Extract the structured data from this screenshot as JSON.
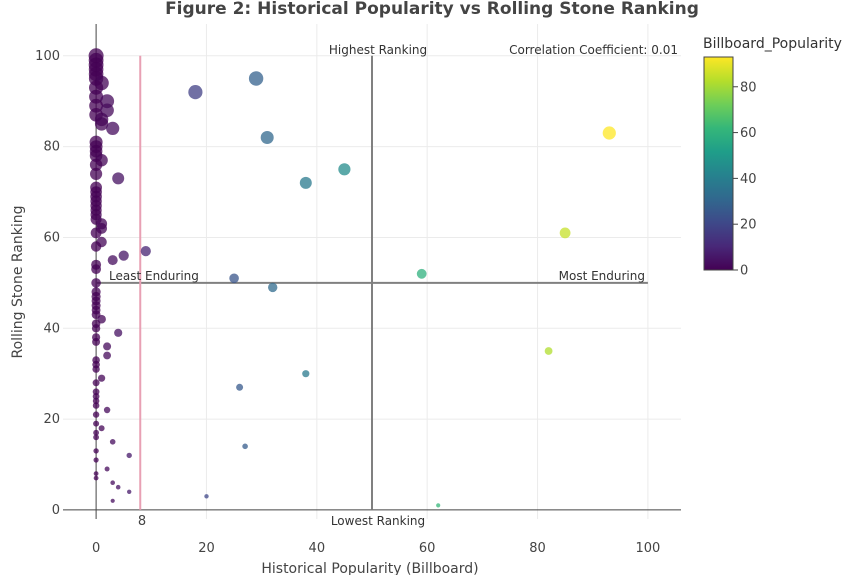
{
  "chart_data": {
    "type": "scatter",
    "title": "Figure 2: Historical Popularity vs Rolling Stone Ranking",
    "xlabel": "Historical Popularity (Billboard)",
    "ylabel": "Rolling Stone Ranking",
    "xlim": [
      -6,
      106
    ],
    "ylim": [
      -2,
      107
    ],
    "xticks": [
      0,
      20,
      40,
      60,
      80,
      100
    ],
    "yticks": [
      0,
      20,
      40,
      60,
      80,
      100
    ],
    "grid": true,
    "colorbar": {
      "title": "Billboard_Popularity",
      "range": [
        0,
        93
      ],
      "ticks": [
        0,
        20,
        40,
        60,
        80
      ],
      "colorscale": [
        "#440154",
        "#482878",
        "#3e4989",
        "#31688e",
        "#26828e",
        "#1f9e89",
        "#35b779",
        "#6ece58",
        "#b5de2b",
        "#fde725"
      ]
    },
    "reference_lines": {
      "vertical_mid": 50,
      "horizontal_mid": 50,
      "pink_threshold": 8,
      "pink_label": "8"
    },
    "annotations": {
      "top": "Highest Ranking",
      "bottom": "Lowest Ranking",
      "left": "Least Enduring",
      "right": "Most Enduring",
      "correlation": "Correlation Coefficient:  0.01"
    },
    "points": [
      {
        "x": 0,
        "y": 100
      },
      {
        "x": 0,
        "y": 99
      },
      {
        "x": 0,
        "y": 98
      },
      {
        "x": 0,
        "y": 97
      },
      {
        "x": 0,
        "y": 96
      },
      {
        "x": 0,
        "y": 95
      },
      {
        "x": 1,
        "y": 94
      },
      {
        "x": 0,
        "y": 93
      },
      {
        "x": 0,
        "y": 91
      },
      {
        "x": 2,
        "y": 90
      },
      {
        "x": 0,
        "y": 89
      },
      {
        "x": 2,
        "y": 88
      },
      {
        "x": 0,
        "y": 87
      },
      {
        "x": 1,
        "y": 86
      },
      {
        "x": 1,
        "y": 85
      },
      {
        "x": 3,
        "y": 84
      },
      {
        "x": 0,
        "y": 81
      },
      {
        "x": 0,
        "y": 80
      },
      {
        "x": 0,
        "y": 79
      },
      {
        "x": 0,
        "y": 78
      },
      {
        "x": 1,
        "y": 77
      },
      {
        "x": 0,
        "y": 76
      },
      {
        "x": 0,
        "y": 74
      },
      {
        "x": 4,
        "y": 73
      },
      {
        "x": 0,
        "y": 71
      },
      {
        "x": 0,
        "y": 70
      },
      {
        "x": 0,
        "y": 69
      },
      {
        "x": 0,
        "y": 68
      },
      {
        "x": 0,
        "y": 67
      },
      {
        "x": 0,
        "y": 66
      },
      {
        "x": 0,
        "y": 65
      },
      {
        "x": 0,
        "y": 64
      },
      {
        "x": 1,
        "y": 63
      },
      {
        "x": 1,
        "y": 62
      },
      {
        "x": 0,
        "y": 61
      },
      {
        "x": 1,
        "y": 59
      },
      {
        "x": 0,
        "y": 58
      },
      {
        "x": 9,
        "y": 57
      },
      {
        "x": 5,
        "y": 56
      },
      {
        "x": 3,
        "y": 55
      },
      {
        "x": 0,
        "y": 54
      },
      {
        "x": 0,
        "y": 53
      },
      {
        "x": 0,
        "y": 50
      },
      {
        "x": 0,
        "y": 48
      },
      {
        "x": 0,
        "y": 47
      },
      {
        "x": 0,
        "y": 46
      },
      {
        "x": 0,
        "y": 45
      },
      {
        "x": 0,
        "y": 44
      },
      {
        "x": 0,
        "y": 43
      },
      {
        "x": 1,
        "y": 42
      },
      {
        "x": 0,
        "y": 41
      },
      {
        "x": 0,
        "y": 40
      },
      {
        "x": 4,
        "y": 39
      },
      {
        "x": 0,
        "y": 38
      },
      {
        "x": 0,
        "y": 37
      },
      {
        "x": 2,
        "y": 36
      },
      {
        "x": 2,
        "y": 34
      },
      {
        "x": 0,
        "y": 33
      },
      {
        "x": 0,
        "y": 32
      },
      {
        "x": 0,
        "y": 31
      },
      {
        "x": 1,
        "y": 29
      },
      {
        "x": 0,
        "y": 28
      },
      {
        "x": 0,
        "y": 26
      },
      {
        "x": 0,
        "y": 25
      },
      {
        "x": 0,
        "y": 24
      },
      {
        "x": 0,
        "y": 23
      },
      {
        "x": 2,
        "y": 22
      },
      {
        "x": 0,
        "y": 21
      },
      {
        "x": 0,
        "y": 19
      },
      {
        "x": 1,
        "y": 18
      },
      {
        "x": 0,
        "y": 17
      },
      {
        "x": 0,
        "y": 16
      },
      {
        "x": 3,
        "y": 15
      },
      {
        "x": 0,
        "y": 13
      },
      {
        "x": 6,
        "y": 12
      },
      {
        "x": 0,
        "y": 11
      },
      {
        "x": 2,
        "y": 9
      },
      {
        "x": 0,
        "y": 8
      },
      {
        "x": 0,
        "y": 7
      },
      {
        "x": 3,
        "y": 6
      },
      {
        "x": 4,
        "y": 5
      },
      {
        "x": 6,
        "y": 4
      },
      {
        "x": 3,
        "y": 2
      },
      {
        "x": 18,
        "y": 92
      },
      {
        "x": 29,
        "y": 95
      },
      {
        "x": 31,
        "y": 82
      },
      {
        "x": 38,
        "y": 72
      },
      {
        "x": 45,
        "y": 75
      },
      {
        "x": 25,
        "y": 51
      },
      {
        "x": 32,
        "y": 49
      },
      {
        "x": 59,
        "y": 52
      },
      {
        "x": 85,
        "y": 61
      },
      {
        "x": 93,
        "y": 83
      },
      {
        "x": 82,
        "y": 35
      },
      {
        "x": 38,
        "y": 30
      },
      {
        "x": 26,
        "y": 27
      },
      {
        "x": 27,
        "y": 14
      },
      {
        "x": 20,
        "y": 3
      },
      {
        "x": 62,
        "y": 1
      }
    ]
  }
}
